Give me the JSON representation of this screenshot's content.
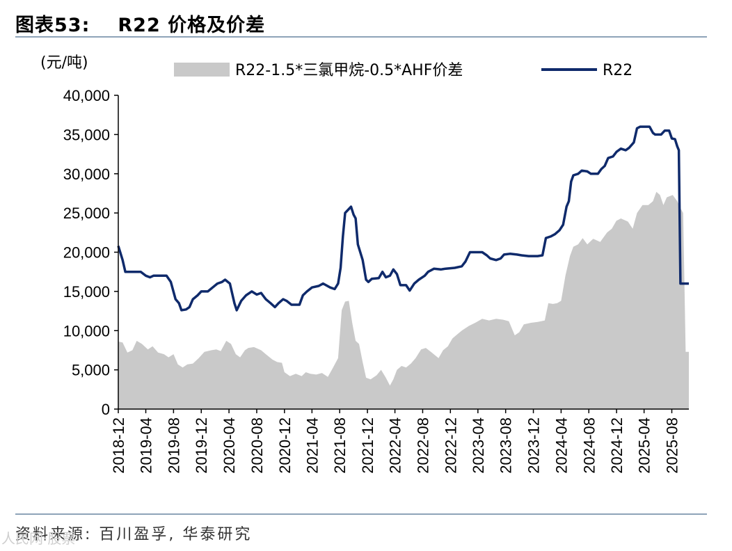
{
  "header": {
    "figure_label": "图表53:",
    "title": "R22 价格及价差"
  },
  "footer": {
    "source": "资料来源: 百川盈孚, 华泰研究",
    "watermark": "人民网·股票"
  },
  "colors": {
    "spread": "#c9c9c9",
    "r22": "#0f2a6b",
    "rule": "#8ea3b8"
  },
  "chart_data": {
    "type": "area+line",
    "unit_label": "(元/吨)",
    "ylim": [
      0,
      40000
    ],
    "yticks": [
      0,
      5000,
      10000,
      15000,
      20000,
      25000,
      30000,
      35000,
      40000
    ],
    "ytick_labels": [
      "0",
      "5,000",
      "10,000",
      "15,000",
      "20,000",
      "25,000",
      "30,000",
      "35,000",
      "40,000"
    ],
    "x_start": "2018-12",
    "x_end": "2025-10",
    "xtick_labels": [
      "2018-12",
      "2019-04",
      "2019-08",
      "2019-12",
      "2020-04",
      "2020-08",
      "2020-12",
      "2021-04",
      "2021-08",
      "2021-12",
      "2022-04",
      "2022-08",
      "2022-12",
      "2023-04",
      "2023-08",
      "2023-12",
      "2024-04",
      "2024-08",
      "2024-12",
      "2025-04",
      "2025-08"
    ],
    "series": [
      {
        "name": "R22-1.5*三氯甲烷-0.5*AHF价差",
        "kind": "area",
        "points": [
          [
            "2018-12-01",
            8600
          ],
          [
            "2018-12-20",
            8500
          ],
          [
            "2019-01-10",
            7200
          ],
          [
            "2019-02-01",
            7500
          ],
          [
            "2019-02-20",
            8700
          ],
          [
            "2019-03-15",
            8300
          ],
          [
            "2019-04-10",
            7600
          ],
          [
            "2019-05-01",
            8000
          ],
          [
            "2019-05-25",
            7200
          ],
          [
            "2019-06-20",
            7000
          ],
          [
            "2019-07-10",
            6600
          ],
          [
            "2019-08-01",
            7000
          ],
          [
            "2019-08-20",
            5700
          ],
          [
            "2019-09-10",
            5300
          ],
          [
            "2019-10-01",
            5700
          ],
          [
            "2019-10-25",
            5800
          ],
          [
            "2019-11-20",
            6500
          ],
          [
            "2019-12-15",
            7300
          ],
          [
            "2020-01-15",
            7500
          ],
          [
            "2020-02-05",
            7600
          ],
          [
            "2020-02-25",
            7400
          ],
          [
            "2020-03-20",
            8700
          ],
          [
            "2020-04-10",
            8300
          ],
          [
            "2020-05-01",
            7000
          ],
          [
            "2020-05-20",
            6600
          ],
          [
            "2020-06-10",
            7500
          ],
          [
            "2020-06-25",
            7800
          ],
          [
            "2020-07-20",
            7900
          ],
          [
            "2020-08-20",
            7500
          ],
          [
            "2020-09-10",
            7000
          ],
          [
            "2020-10-10",
            6300
          ],
          [
            "2020-10-30",
            6000
          ],
          [
            "2020-11-20",
            5900
          ],
          [
            "2020-12-01",
            4700
          ],
          [
            "2020-12-25",
            4200
          ],
          [
            "2021-01-20",
            4500
          ],
          [
            "2021-02-15",
            4200
          ],
          [
            "2021-03-05",
            4700
          ],
          [
            "2021-03-25",
            4500
          ],
          [
            "2021-04-20",
            4400
          ],
          [
            "2021-05-15",
            4600
          ],
          [
            "2021-06-10",
            4100
          ],
          [
            "2021-07-01",
            5200
          ],
          [
            "2021-07-25",
            6500
          ],
          [
            "2021-08-10",
            12600
          ],
          [
            "2021-08-25",
            13700
          ],
          [
            "2021-09-10",
            13800
          ],
          [
            "2021-09-25",
            11000
          ],
          [
            "2021-10-10",
            8700
          ],
          [
            "2021-10-25",
            8300
          ],
          [
            "2021-11-10",
            6000
          ],
          [
            "2021-11-25",
            4000
          ],
          [
            "2021-12-15",
            3800
          ],
          [
            "2022-01-10",
            4300
          ],
          [
            "2022-01-30",
            5000
          ],
          [
            "2022-02-20",
            4000
          ],
          [
            "2022-03-10",
            3000
          ],
          [
            "2022-03-25",
            3800
          ],
          [
            "2022-04-10",
            5000
          ],
          [
            "2022-04-30",
            5500
          ],
          [
            "2022-05-20",
            5300
          ],
          [
            "2022-06-10",
            5800
          ],
          [
            "2022-07-01",
            6500
          ],
          [
            "2022-07-25",
            7600
          ],
          [
            "2022-08-15",
            7800
          ],
          [
            "2022-09-10",
            7200
          ],
          [
            "2022-10-10",
            6500
          ],
          [
            "2022-10-30",
            7500
          ],
          [
            "2022-11-20",
            8000
          ],
          [
            "2022-12-10",
            9000
          ],
          [
            "2022-12-30",
            9500
          ],
          [
            "2023-01-20",
            10000
          ],
          [
            "2023-02-20",
            10600
          ],
          [
            "2023-03-20",
            11000
          ],
          [
            "2023-04-20",
            11500
          ],
          [
            "2023-05-20",
            11300
          ],
          [
            "2023-06-20",
            11500
          ],
          [
            "2023-07-20",
            11400
          ],
          [
            "2023-08-15",
            11200
          ],
          [
            "2023-09-10",
            9400
          ],
          [
            "2023-09-30",
            9800
          ],
          [
            "2023-10-20",
            10800
          ],
          [
            "2023-11-20",
            11000
          ],
          [
            "2023-12-20",
            11100
          ],
          [
            "2024-01-20",
            11300
          ],
          [
            "2024-02-05",
            13500
          ],
          [
            "2024-02-25",
            13400
          ],
          [
            "2024-03-15",
            13500
          ],
          [
            "2024-04-01",
            13800
          ],
          [
            "2024-04-20",
            17000
          ],
          [
            "2024-05-10",
            19500
          ],
          [
            "2024-05-25",
            20700
          ],
          [
            "2024-06-15",
            21000
          ],
          [
            "2024-07-05",
            21800
          ],
          [
            "2024-07-25",
            21000
          ],
          [
            "2024-08-20",
            21700
          ],
          [
            "2024-09-20",
            21300
          ],
          [
            "2024-10-20",
            22500
          ],
          [
            "2024-11-10",
            23000
          ],
          [
            "2024-11-30",
            24000
          ],
          [
            "2024-12-20",
            24300
          ],
          [
            "2025-01-20",
            23900
          ],
          [
            "2025-02-10",
            23000
          ],
          [
            "2025-03-01",
            25000
          ],
          [
            "2025-03-25",
            26000
          ],
          [
            "2025-04-20",
            26000
          ],
          [
            "2025-05-10",
            26500
          ],
          [
            "2025-05-25",
            27700
          ],
          [
            "2025-06-10",
            27300
          ],
          [
            "2025-06-25",
            26000
          ],
          [
            "2025-07-10",
            27000
          ],
          [
            "2025-08-05",
            27300
          ],
          [
            "2025-08-25",
            26500
          ],
          [
            "2025-09-10",
            25500
          ],
          [
            "2025-09-20",
            25000
          ],
          [
            "2025-10-01",
            7300
          ],
          [
            "2025-10-15",
            7300
          ]
        ]
      },
      {
        "name": "R22",
        "kind": "line",
        "points": [
          [
            "2018-12-01",
            20800
          ],
          [
            "2018-12-20",
            19000
          ],
          [
            "2019-01-01",
            17500
          ],
          [
            "2019-03-10",
            17500
          ],
          [
            "2019-04-01",
            17000
          ],
          [
            "2019-04-20",
            16800
          ],
          [
            "2019-05-05",
            17000
          ],
          [
            "2019-07-01",
            17000
          ],
          [
            "2019-07-20",
            16200
          ],
          [
            "2019-08-10",
            14000
          ],
          [
            "2019-08-25",
            13500
          ],
          [
            "2019-09-05",
            12600
          ],
          [
            "2019-09-25",
            12700
          ],
          [
            "2019-10-10",
            13000
          ],
          [
            "2019-10-25",
            14000
          ],
          [
            "2019-11-15",
            14500
          ],
          [
            "2019-12-01",
            15000
          ],
          [
            "2019-12-30",
            15000
          ],
          [
            "2020-01-20",
            15500
          ],
          [
            "2020-02-10",
            16000
          ],
          [
            "2020-03-01",
            16200
          ],
          [
            "2020-03-15",
            16500
          ],
          [
            "2020-04-05",
            16000
          ],
          [
            "2020-04-25",
            13500
          ],
          [
            "2020-05-05",
            12600
          ],
          [
            "2020-05-25",
            13800
          ],
          [
            "2020-06-15",
            14500
          ],
          [
            "2020-07-10",
            15000
          ],
          [
            "2020-08-01",
            14600
          ],
          [
            "2020-08-20",
            14800
          ],
          [
            "2020-09-10",
            14000
          ],
          [
            "2020-10-01",
            13500
          ],
          [
            "2020-10-20",
            13000
          ],
          [
            "2020-11-05",
            13500
          ],
          [
            "2020-11-25",
            14000
          ],
          [
            "2020-12-10",
            13800
          ],
          [
            "2021-01-01",
            13300
          ],
          [
            "2021-02-05",
            13300
          ],
          [
            "2021-02-20",
            14500
          ],
          [
            "2021-03-10",
            15000
          ],
          [
            "2021-04-01",
            15500
          ],
          [
            "2021-05-01",
            15700
          ],
          [
            "2021-05-20",
            16000
          ],
          [
            "2021-06-20",
            15500
          ],
          [
            "2021-07-10",
            15300
          ],
          [
            "2021-07-25",
            16000
          ],
          [
            "2021-08-05",
            18000
          ],
          [
            "2021-08-15",
            22000
          ],
          [
            "2021-08-25",
            25000
          ],
          [
            "2021-09-10",
            25500
          ],
          [
            "2021-09-20",
            25800
          ],
          [
            "2021-10-01",
            24800
          ],
          [
            "2021-10-10",
            24300
          ],
          [
            "2021-10-20",
            21000
          ],
          [
            "2021-11-10",
            19000
          ],
          [
            "2021-11-25",
            16500
          ],
          [
            "2021-12-05",
            16200
          ],
          [
            "2021-12-20",
            16600
          ],
          [
            "2022-01-20",
            16700
          ],
          [
            "2022-02-05",
            17500
          ],
          [
            "2022-02-20",
            16800
          ],
          [
            "2022-03-10",
            17000
          ],
          [
            "2022-03-25",
            17800
          ],
          [
            "2022-04-10",
            17200
          ],
          [
            "2022-04-25",
            15800
          ],
          [
            "2022-05-20",
            15800
          ],
          [
            "2022-06-05",
            15100
          ],
          [
            "2022-06-25",
            16000
          ],
          [
            "2022-07-15",
            16500
          ],
          [
            "2022-08-10",
            17000
          ],
          [
            "2022-08-25",
            17500
          ],
          [
            "2022-09-20",
            17900
          ],
          [
            "2022-10-20",
            17800
          ],
          [
            "2022-11-10",
            17900
          ],
          [
            "2022-12-20",
            18000
          ],
          [
            "2023-01-20",
            18200
          ],
          [
            "2023-02-05",
            18800
          ],
          [
            "2023-02-25",
            20000
          ],
          [
            "2023-03-20",
            20000
          ],
          [
            "2023-04-20",
            20000
          ],
          [
            "2023-05-10",
            19600
          ],
          [
            "2023-05-25",
            19200
          ],
          [
            "2023-06-20",
            19000
          ],
          [
            "2023-07-10",
            19200
          ],
          [
            "2023-07-25",
            19700
          ],
          [
            "2023-08-20",
            19800
          ],
          [
            "2023-09-20",
            19700
          ],
          [
            "2023-10-10",
            19600
          ],
          [
            "2023-11-10",
            19500
          ],
          [
            "2023-12-20",
            19500
          ],
          [
            "2024-01-10",
            19600
          ],
          [
            "2024-01-25",
            21800
          ],
          [
            "2024-02-15",
            22000
          ],
          [
            "2024-03-05",
            22300
          ],
          [
            "2024-03-25",
            22800
          ],
          [
            "2024-04-10",
            23500
          ],
          [
            "2024-04-25",
            25800
          ],
          [
            "2024-05-05",
            26500
          ],
          [
            "2024-05-15",
            29000
          ],
          [
            "2024-05-25",
            29800
          ],
          [
            "2024-06-15",
            30000
          ],
          [
            "2024-07-01",
            30400
          ],
          [
            "2024-07-25",
            30300
          ],
          [
            "2024-08-10",
            30000
          ],
          [
            "2024-09-10",
            30000
          ],
          [
            "2024-09-25",
            30600
          ],
          [
            "2024-10-10",
            31000
          ],
          [
            "2024-10-25",
            32000
          ],
          [
            "2024-11-15",
            32200
          ],
          [
            "2024-12-01",
            32800
          ],
          [
            "2024-12-20",
            33200
          ],
          [
            "2025-01-10",
            33000
          ],
          [
            "2025-01-25",
            33300
          ],
          [
            "2025-02-15",
            34000
          ],
          [
            "2025-03-01",
            35800
          ],
          [
            "2025-03-15",
            36000
          ],
          [
            "2025-04-01",
            36000
          ],
          [
            "2025-04-25",
            36000
          ],
          [
            "2025-05-10",
            35200
          ],
          [
            "2025-05-20",
            35000
          ],
          [
            "2025-06-15",
            35000
          ],
          [
            "2025-07-01",
            35500
          ],
          [
            "2025-07-20",
            35500
          ],
          [
            "2025-08-01",
            34500
          ],
          [
            "2025-08-15",
            34400
          ],
          [
            "2025-08-25",
            33500
          ],
          [
            "2025-09-01",
            33000
          ],
          [
            "2025-09-08",
            16000
          ],
          [
            "2025-10-15",
            16000
          ]
        ]
      }
    ]
  }
}
